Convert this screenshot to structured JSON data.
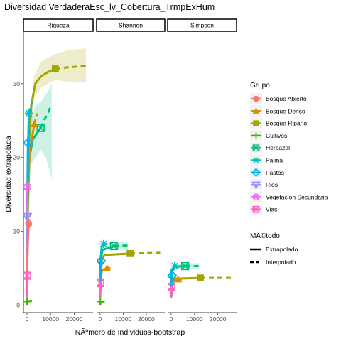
{
  "chart_data": {
    "type": "line",
    "title": "Diversidad VerdaderaEsc_lv_Cobertura_TrmpExHum",
    "xlabel": "NÃºmero de Individuos-bootstrap",
    "ylabel": "Diversidad extrapolada",
    "xlim": [
      -1500,
      28000
    ],
    "ylim": [
      -1,
      37
    ],
    "x_ticks": [
      0,
      10000,
      20000
    ],
    "y_ticks": [
      0,
      10,
      20,
      30
    ],
    "grid": false,
    "legend_position": "right",
    "facets": [
      "Riqueza",
      "Shannon",
      "Simpson"
    ],
    "legend_groups": {
      "title": "Grupo",
      "items": [
        {
          "name": "Bosque Abierto",
          "color": "#F8766D",
          "shape": "circle"
        },
        {
          "name": "Bosque Denso",
          "color": "#D89000",
          "shape": "triangle"
        },
        {
          "name": "Bosque Ripario",
          "color": "#A3A500",
          "shape": "square"
        },
        {
          "name": "Cultivos",
          "color": "#39B600",
          "shape": "plus"
        },
        {
          "name": "Herbazal",
          "color": "#00BF7D",
          "shape": "boxx"
        },
        {
          "name": "Palma",
          "color": "#00BFC4",
          "shape": "asterisk"
        },
        {
          "name": "Pastos",
          "color": "#00B0F6",
          "shape": "diamond"
        },
        {
          "name": "Rios",
          "color": "#9590FF",
          "shape": "triangle-down"
        },
        {
          "name": "Vegetacion Secundaria",
          "color": "#E76BF3",
          "shape": "circle-x"
        },
        {
          "name": "Vias",
          "color": "#FF62BC",
          "shape": "square-x"
        }
      ]
    },
    "legend_methods": {
      "title": "MÃ©todo",
      "items": [
        {
          "name": "Extrapolado",
          "dash": "solid"
        },
        {
          "name": "Interpolado",
          "dash": "dashed"
        }
      ]
    },
    "panels": [
      {
        "facet": "Riqueza",
        "series": [
          {
            "group": "Bosque Ripario",
            "obs": [
              12000,
              32
            ],
            "interp": [
              [
                0,
                1
              ],
              [
                300,
                14
              ],
              [
                800,
                22
              ],
              [
                1800,
                27
              ],
              [
                3500,
                30
              ],
              [
                6000,
                31
              ],
              [
                9000,
                31.6
              ],
              [
                12000,
                32
              ]
            ],
            "extrap": [
              [
                12000,
                32
              ],
              [
                17000,
                32.2
              ],
              [
                21000,
                32.3
              ],
              [
                25000,
                32.4
              ]
            ],
            "ribbon": [
              [
                0,
                0,
                2
              ],
              [
                1000,
                20,
                25
              ],
              [
                3000,
                28,
                31
              ],
              [
                6000,
                29.5,
                33
              ],
              [
                12000,
                30.5,
                34
              ],
              [
                17000,
                30.3,
                34.5
              ],
              [
                25000,
                30.2,
                34.8
              ]
            ]
          },
          {
            "group": "Herbazal",
            "obs": [
              5800,
              24
            ],
            "interp": [
              [
                0,
                1
              ],
              [
                300,
                13
              ],
              [
                1000,
                20
              ],
              [
                2500,
                22.5
              ],
              [
                5800,
                24
              ]
            ],
            "extrap": [
              [
                5800,
                24
              ],
              [
                7200,
                25
              ],
              [
                8800,
                26
              ],
              [
                10200,
                27
              ]
            ],
            "ribbon": [
              [
                0,
                0,
                2
              ],
              [
                1500,
                19,
                25
              ],
              [
                3500,
                20,
                27
              ],
              [
                5800,
                21,
                27.5
              ],
              [
                8000,
                20,
                28.5
              ],
              [
                10500,
                17,
                30
              ]
            ]
          },
          {
            "group": "Bosque Denso",
            "obs": [
              3100,
              24.5
            ],
            "interp": [
              [
                0,
                1
              ],
              [
                400,
                15
              ],
              [
                1200,
                21
              ],
              [
                3100,
                24.5
              ]
            ],
            "extrap": [
              [
                3100,
                24.5
              ],
              [
                3700,
                25.3
              ],
              [
                4300,
                26
              ]
            ],
            "ribbon": null
          },
          {
            "group": "Palma",
            "obs": [
              800,
              26
            ],
            "interp": [
              [
                0,
                1
              ],
              [
                200,
                14
              ],
              [
                500,
                22
              ],
              [
                800,
                26
              ]
            ],
            "extrap": [
              [
                800,
                26
              ],
              [
                1500,
                27
              ],
              [
                2200,
                27.5
              ]
            ],
            "ribbon": null
          },
          {
            "group": "Pastos",
            "obs": [
              400,
              22
            ],
            "interp": [
              [
                0,
                1
              ],
              [
                100,
                10
              ],
              [
                250,
                17
              ],
              [
                400,
                22
              ]
            ],
            "extrap": [
              [
                400,
                22
              ],
              [
                700,
                23
              ],
              [
                1000,
                23.5
              ]
            ],
            "ribbon": null
          },
          {
            "group": "Vegetacion Secundaria",
            "obs": [
              150,
              16
            ],
            "interp": [
              [
                0,
                1
              ],
              [
                80,
                9
              ],
              [
                150,
                16
              ]
            ],
            "extrap": [
              [
                150,
                16
              ],
              [
                350,
                17
              ]
            ],
            "ribbon": null
          },
          {
            "group": "Rios",
            "obs": [
              60,
              12
            ],
            "interp": [
              [
                0,
                1
              ],
              [
                30,
                7
              ],
              [
                60,
                12
              ]
            ],
            "extrap": [
              [
                60,
                12
              ],
              [
                200,
                12.5
              ]
            ],
            "ribbon": null
          },
          {
            "group": "Bosque Abierto",
            "obs": [
              700,
              11
            ],
            "interp": [
              [
                0,
                1
              ],
              [
                150,
                6
              ],
              [
                400,
                9
              ],
              [
                700,
                11
              ]
            ],
            "extrap": [
              [
                700,
                11
              ],
              [
                1200,
                12
              ]
            ],
            "ribbon": null
          },
          {
            "group": "Cultivos",
            "obs": [
              40,
              0.5
            ],
            "interp": [
              [
                0,
                0
              ],
              [
                40,
                0.5
              ]
            ],
            "extrap": [
              [
                40,
                0.5
              ],
              [
                2200,
                0.6
              ]
            ],
            "ribbon": null
          },
          {
            "group": "Vias",
            "obs": [
              40,
              4
            ],
            "interp": [
              [
                0,
                1
              ],
              [
                40,
                4
              ]
            ],
            "extrap": [
              [
                40,
                4
              ],
              [
                150,
                4.2
              ]
            ],
            "ribbon": null
          }
        ]
      },
      {
        "facet": "Shannon",
        "series": [
          {
            "group": "Bosque Ripario",
            "obs": [
              13000,
              7
            ],
            "interp": [
              [
                0,
                1
              ],
              [
                300,
                4
              ],
              [
                800,
                6.3
              ],
              [
                2000,
                6.8
              ],
              [
                13000,
                7
              ]
            ],
            "extrap": [
              [
                13000,
                7
              ],
              [
                20000,
                7.05
              ],
              [
                26000,
                7.1
              ]
            ],
            "ribbon": null
          },
          {
            "group": "Herbazal",
            "obs": [
              6000,
              8
            ],
            "interp": [
              [
                0,
                1
              ],
              [
                300,
                6
              ],
              [
                1000,
                7.5
              ],
              [
                6000,
                8
              ]
            ],
            "extrap": [
              [
                6000,
                8
              ],
              [
                9500,
                8.05
              ],
              [
                12000,
                8.1
              ]
            ],
            "ribbon": [
              [
                3000,
                7.6,
                8.4
              ],
              [
                6000,
                7.5,
                8.5
              ],
              [
                12000,
                7.4,
                8.6
              ]
            ]
          },
          {
            "group": "Palma",
            "obs": [
              1500,
              8.3
            ],
            "interp": [
              [
                0,
                1
              ],
              [
                200,
                6
              ],
              [
                700,
                8
              ],
              [
                1500,
                8.3
              ]
            ],
            "extrap": [
              [
                1500,
                8.3
              ],
              [
                3000,
                8.3
              ]
            ],
            "ribbon": null
          },
          {
            "group": "Bosque Denso",
            "obs": [
              3000,
              5
            ],
            "interp": [
              [
                0,
                1
              ],
              [
                300,
                4
              ],
              [
                1000,
                4.8
              ],
              [
                3000,
                5
              ]
            ],
            "extrap": [
              [
                3000,
                5
              ],
              [
                4500,
                5
              ]
            ],
            "ribbon": null
          },
          {
            "group": "Pastos",
            "obs": [
              400,
              6
            ],
            "interp": [
              [
                0,
                1
              ],
              [
                200,
                5
              ],
              [
                400,
                6
              ]
            ],
            "extrap": [
              [
                400,
                6
              ],
              [
                900,
                6
              ]
            ],
            "ribbon": null
          },
          {
            "group": "Cultivos",
            "obs": [
              100,
              0.5
            ],
            "interp": [
              [
                0,
                0
              ],
              [
                100,
                0.5
              ]
            ],
            "extrap": [
              [
                100,
                0.5
              ],
              [
                2000,
                0.5
              ]
            ],
            "ribbon": null
          },
          {
            "group": "Vias",
            "obs": [
              60,
              3
            ],
            "interp": [
              [
                0,
                1
              ],
              [
                60,
                3
              ]
            ],
            "extrap": [
              [
                60,
                3
              ],
              [
                200,
                3.2
              ]
            ],
            "ribbon": null
          }
        ]
      },
      {
        "facet": "Simpson",
        "series": [
          {
            "group": "Bosque Ripario",
            "obs": [
              12500,
              3.7
            ],
            "interp": [
              [
                0,
                1
              ],
              [
                500,
                3.3
              ],
              [
                2000,
                3.6
              ],
              [
                12500,
                3.7
              ]
            ],
            "extrap": [
              [
                12500,
                3.7
              ],
              [
                20000,
                3.7
              ],
              [
                26000,
                3.7
              ]
            ],
            "ribbon": null
          },
          {
            "group": "Herbazal",
            "obs": [
              6000,
              5.3
            ],
            "interp": [
              [
                0,
                1
              ],
              [
                300,
                4.5
              ],
              [
                1500,
                5.2
              ],
              [
                6000,
                5.3
              ]
            ],
            "extrap": [
              [
                6000,
                5.3
              ],
              [
                10000,
                5.3
              ],
              [
                12000,
                5.3
              ]
            ],
            "ribbon": [
              [
                3000,
                5.0,
                5.6
              ],
              [
                6000,
                4.9,
                5.7
              ],
              [
                12000,
                4.9,
                5.7
              ]
            ]
          },
          {
            "group": "Palma",
            "obs": [
              1500,
              5.3
            ],
            "interp": [
              [
                0,
                1
              ],
              [
                200,
                4.8
              ],
              [
                1500,
                5.3
              ]
            ],
            "extrap": [
              [
                1500,
                5.3
              ],
              [
                3000,
                5.3
              ]
            ],
            "ribbon": null
          },
          {
            "group": "Bosque Denso",
            "obs": [
              3000,
              3.5
            ],
            "interp": [
              [
                0,
                1
              ],
              [
                300,
                3.1
              ],
              [
                3000,
                3.5
              ]
            ],
            "extrap": [
              [
                3000,
                3.5
              ],
              [
                4500,
                3.5
              ]
            ],
            "ribbon": null
          },
          {
            "group": "Pastos",
            "obs": [
              400,
              4
            ],
            "interp": [
              [
                0,
                1
              ],
              [
                400,
                4
              ]
            ],
            "extrap": [
              [
                400,
                4
              ],
              [
                900,
                4
              ]
            ],
            "ribbon": null
          },
          {
            "group": "Vias",
            "obs": [
              60,
              2.5
            ],
            "interp": [
              [
                0,
                1
              ],
              [
                60,
                2.5
              ]
            ],
            "extrap": [
              [
                60,
                2.5
              ],
              [
                200,
                2.6
              ]
            ],
            "ribbon": null
          }
        ]
      }
    ]
  }
}
